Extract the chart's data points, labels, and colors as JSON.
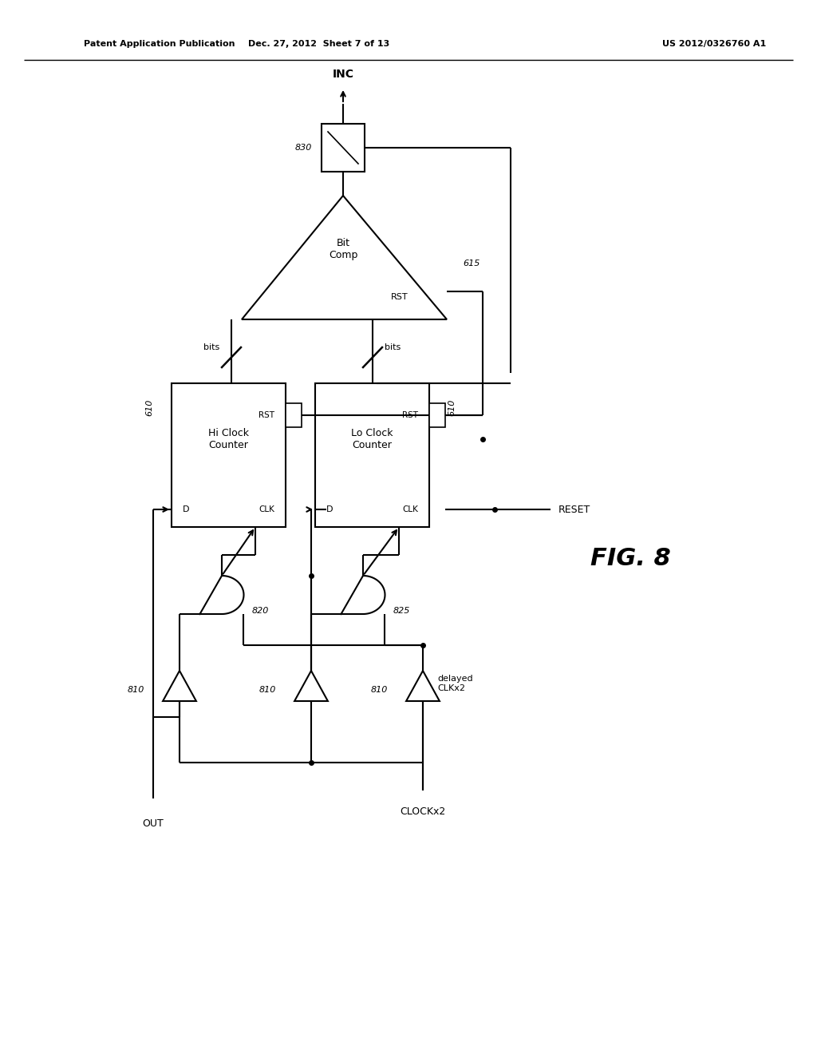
{
  "title_left": "Patent Application Publication",
  "title_center": "Dec. 27, 2012  Sheet 7 of 13",
  "title_right": "US 2012/0326760 A1",
  "fig_label": "FIG. 8",
  "background_color": "#ffffff",
  "line_color": "#000000",
  "text_color": "#000000",
  "fig_width": 10.24,
  "fig_height": 13.2
}
